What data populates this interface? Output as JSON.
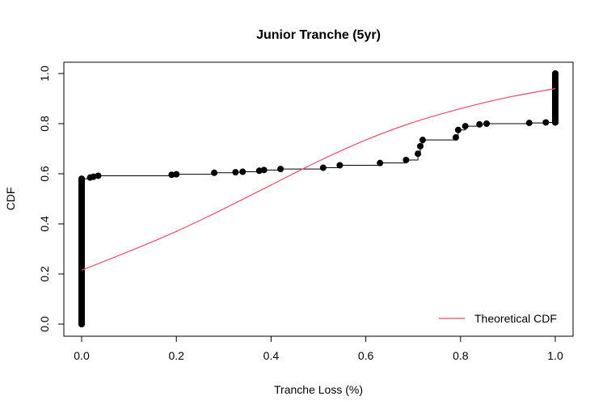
{
  "chart_data": {
    "type": "line",
    "title": "Junior Tranche (5yr)",
    "xlabel": "Tranche Loss (%)",
    "ylabel": "CDF",
    "xlim": [
      0,
      1
    ],
    "ylim": [
      0,
      1
    ],
    "x_ticks": [
      "0.0",
      "0.2",
      "0.4",
      "0.6",
      "0.8",
      "1.0"
    ],
    "y_ticks": [
      "0.0",
      "0.2",
      "0.4",
      "0.6",
      "0.8",
      "1.0"
    ],
    "legend": {
      "position": "bottom-right",
      "entries": [
        "Theoretical CDF"
      ]
    },
    "colors": {
      "empirical": "#000000",
      "theoretical": "#df536b",
      "axes": "#000000"
    },
    "series": [
      {
        "kind": "empirical-step",
        "points": [
          [
            0.0,
            0.0
          ],
          [
            0.0,
            0.58
          ],
          [
            0.018,
            0.585
          ],
          [
            0.025,
            0.588
          ],
          [
            0.035,
            0.592
          ],
          [
            0.19,
            0.596
          ],
          [
            0.2,
            0.598
          ],
          [
            0.28,
            0.604
          ],
          [
            0.325,
            0.606
          ],
          [
            0.34,
            0.608
          ],
          [
            0.375,
            0.612
          ],
          [
            0.385,
            0.615
          ],
          [
            0.42,
            0.619
          ],
          [
            0.51,
            0.624
          ],
          [
            0.545,
            0.634
          ],
          [
            0.63,
            0.643
          ],
          [
            0.685,
            0.655
          ],
          [
            0.71,
            0.68
          ],
          [
            0.715,
            0.71
          ],
          [
            0.72,
            0.735
          ],
          [
            0.79,
            0.745
          ],
          [
            0.795,
            0.775
          ],
          [
            0.81,
            0.79
          ],
          [
            0.84,
            0.797
          ],
          [
            0.855,
            0.8
          ],
          [
            0.945,
            0.803
          ],
          [
            0.98,
            0.805
          ],
          [
            1.0,
            0.805
          ],
          [
            1.0,
            1.0
          ]
        ]
      },
      {
        "name": "Theoretical CDF",
        "kind": "smooth",
        "points": [
          [
            0.0,
            0.215
          ],
          [
            0.1,
            0.29
          ],
          [
            0.2,
            0.37
          ],
          [
            0.3,
            0.46
          ],
          [
            0.4,
            0.555
          ],
          [
            0.5,
            0.65
          ],
          [
            0.6,
            0.735
          ],
          [
            0.7,
            0.805
          ],
          [
            0.8,
            0.86
          ],
          [
            0.9,
            0.905
          ],
          [
            1.0,
            0.94
          ]
        ]
      }
    ]
  }
}
